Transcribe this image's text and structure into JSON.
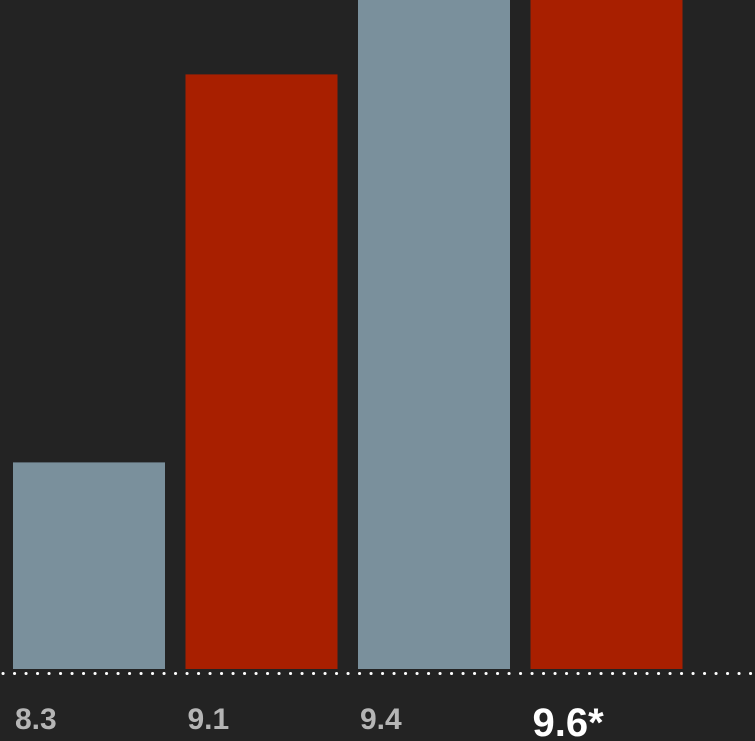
{
  "chart_data": {
    "type": "bar",
    "categories": [
      "8.3",
      "9.1",
      "9.4",
      "9.6*"
    ],
    "values": [
      8.3,
      9.1,
      9.4,
      9.6
    ],
    "highlighted": [
      false,
      false,
      false,
      true
    ],
    "colors": [
      "#7a909c",
      "#a81f00",
      "#7a909c",
      "#a81f00"
    ],
    "label_colors": [
      "#b5b5b5",
      "#b5b5b5",
      "#b5b5b5",
      "#ffffff"
    ],
    "background": "#232323",
    "baseline_color": "#ffffff",
    "baseline_style": "dotted",
    "grid": false,
    "legend": "none",
    "title": "",
    "xlabel": "",
    "ylabel": ""
  }
}
